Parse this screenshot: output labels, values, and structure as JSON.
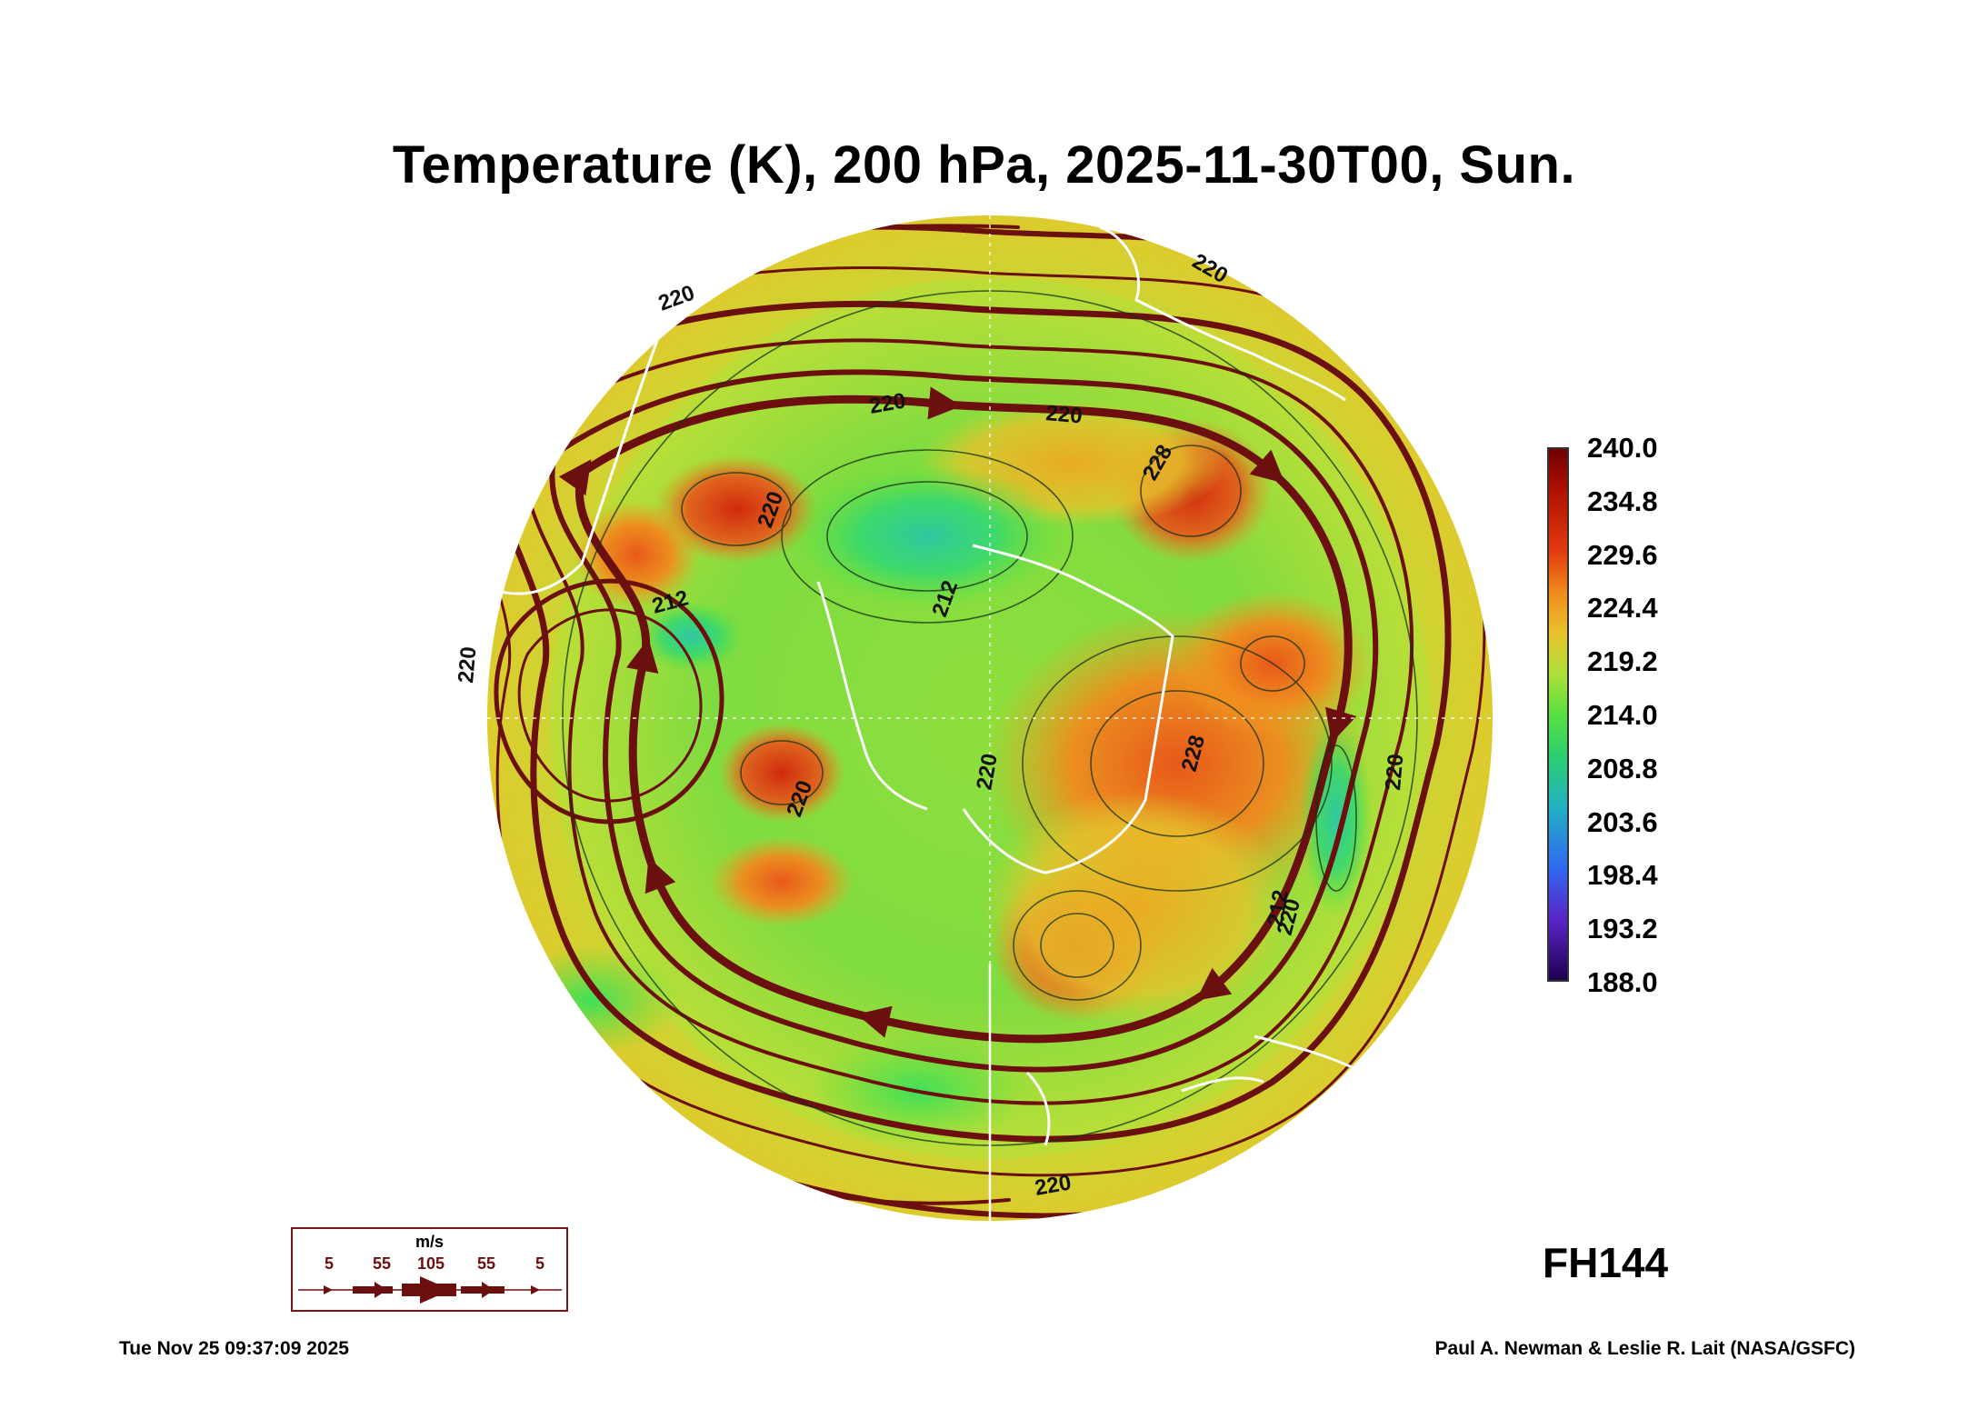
{
  "title": "Temperature (K), 200 hPa, 2025-11-30T00, Sun.",
  "forecast_hour": "FH144",
  "colorbar": {
    "labels": [
      "240.0",
      "234.8",
      "229.6",
      "224.4",
      "219.2",
      "214.0",
      "208.8",
      "203.6",
      "198.4",
      "193.2",
      "188.0"
    ],
    "max": 240.0,
    "min": 188.0,
    "colors": {
      "240": "#6e0000",
      "236": "#b01000",
      "230": "#e23a10",
      "226": "#f08a1a",
      "222": "#e8c22c",
      "218": "#aee03a",
      "214": "#58e040",
      "210": "#2ccf6e",
      "205": "#22b2c0",
      "199": "#2f69f0",
      "194": "#5a25c8",
      "188": "#1e0050"
    }
  },
  "contour_labels": [
    "220",
    "220",
    "220",
    "220",
    "220",
    "220",
    "220",
    "220",
    "220",
    "220",
    "212",
    "212",
    "212",
    "228",
    "228",
    "220"
  ],
  "wind_legend": {
    "unit": "m/s",
    "values": [
      "5",
      "55",
      "105",
      "55",
      "5"
    ]
  },
  "footer": {
    "timestamp": "Tue Nov 25 09:37:09 2025",
    "credit": "Paul A. Newman & Leslie R. Lait (NASA/GSFC)"
  },
  "colors": {
    "streamline": "#6b0f0f",
    "coastline": "#ffffff"
  }
}
